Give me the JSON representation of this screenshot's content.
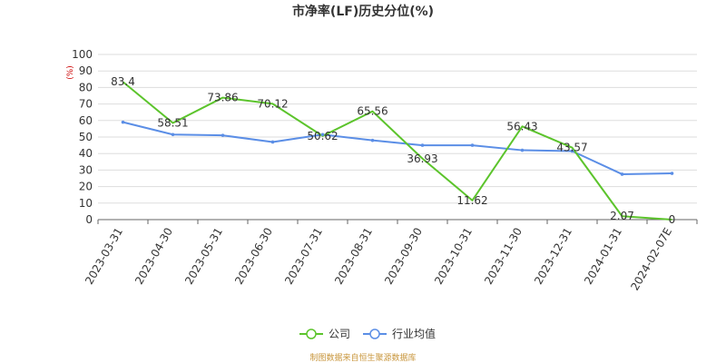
{
  "colors": {
    "company": "#5cc42c",
    "industry": "#5b8ee6",
    "grid": "#dddddd",
    "axis": "#666666",
    "unit": "#cc0000",
    "source": "#c8963c"
  },
  "source_text": "制图数据来自恒生聚源数据库",
  "chart_data": {
    "type": "line",
    "title": "市净率(LF)历史分位(%)",
    "unit_label": "(%)",
    "categories": [
      "2023-03-31",
      "2023-04-30",
      "2023-05-31",
      "2023-06-30",
      "2023-07-31",
      "2023-08-31",
      "2023-09-30",
      "2023-10-31",
      "2023-11-30",
      "2023-12-31",
      "2024-01-31",
      "2024-02-07E"
    ],
    "ylim": [
      0,
      100
    ],
    "yticks": [
      "0",
      "10",
      "20",
      "30",
      "40",
      "50",
      "60",
      "70",
      "80",
      "90",
      "100"
    ],
    "grid": true,
    "legend_position": "bottom",
    "series": [
      {
        "name": "公司",
        "color": "#5cc42c",
        "values": [
          83.4,
          58.51,
          73.86,
          70.12,
          50.62,
          65.56,
          36.93,
          11.62,
          56.43,
          43.57,
          2.07,
          0
        ],
        "labels": [
          "83.4",
          "58.51",
          "73.86",
          "70.12",
          "50.62",
          "65.56",
          "36.93",
          "11.62",
          "56.43",
          "43.57",
          "2.07",
          "0"
        ]
      },
      {
        "name": "行业均值",
        "color": "#5b8ee6",
        "values": [
          59,
          51.5,
          51,
          47,
          51.5,
          48,
          45,
          45,
          42,
          41.5,
          27.5,
          28
        ]
      }
    ]
  }
}
